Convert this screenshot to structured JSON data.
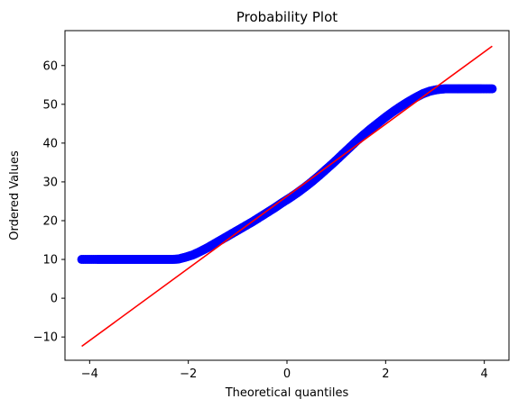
{
  "chart_data": {
    "type": "scatter",
    "title": "Probability Plot",
    "xlabel": "Theoretical quantiles",
    "ylabel": "Ordered Values",
    "xlim": [
      -4.5,
      4.5
    ],
    "ylim": [
      -16,
      69
    ],
    "x_ticks": [
      -4,
      -2,
      0,
      2,
      4
    ],
    "y_ticks": [
      -10,
      0,
      10,
      20,
      30,
      40,
      50,
      60
    ],
    "grid": false,
    "legend": "none",
    "series": [
      {
        "kind": "points",
        "color": "#0000ff",
        "points": [
          [
            -4.16,
            10.0
          ],
          [
            -3.85,
            10.0
          ],
          [
            -3.7,
            10.0
          ],
          [
            -3.55,
            10.0
          ],
          [
            -3.4,
            10.0
          ],
          [
            -3.25,
            10.0
          ],
          [
            -3.1,
            10.0
          ],
          [
            -2.95,
            10.0
          ],
          [
            -2.8,
            10.0
          ],
          [
            -2.65,
            10.0
          ],
          [
            -2.5,
            10.0
          ],
          [
            -2.35,
            10.0
          ],
          [
            -2.2,
            10.1
          ],
          [
            -2.05,
            10.6
          ],
          [
            -1.9,
            11.2
          ],
          [
            -1.75,
            12.1
          ],
          [
            -1.6,
            13.1
          ],
          [
            -1.45,
            14.2
          ],
          [
            -1.3,
            15.3
          ],
          [
            -1.15,
            16.4
          ],
          [
            -1.0,
            17.5
          ],
          [
            -0.85,
            18.6
          ],
          [
            -0.7,
            19.7
          ],
          [
            -0.55,
            20.9
          ],
          [
            -0.4,
            22.1
          ],
          [
            -0.25,
            23.3
          ],
          [
            -0.1,
            24.6
          ],
          [
            0.05,
            25.8
          ],
          [
            0.2,
            27.1
          ],
          [
            0.35,
            28.5
          ],
          [
            0.5,
            30.0
          ],
          [
            0.65,
            31.6
          ],
          [
            0.8,
            33.3
          ],
          [
            0.95,
            35.0
          ],
          [
            1.1,
            36.8
          ],
          [
            1.25,
            38.6
          ],
          [
            1.4,
            40.4
          ],
          [
            1.55,
            42.1
          ],
          [
            1.7,
            43.7
          ],
          [
            1.85,
            45.2
          ],
          [
            2.0,
            46.7
          ],
          [
            2.15,
            48.1
          ],
          [
            2.3,
            49.4
          ],
          [
            2.45,
            50.6
          ],
          [
            2.6,
            51.7
          ],
          [
            2.75,
            52.7
          ],
          [
            2.9,
            53.4
          ],
          [
            3.05,
            53.8
          ],
          [
            3.2,
            54.0
          ],
          [
            3.35,
            54.0
          ],
          [
            3.5,
            54.0
          ],
          [
            3.65,
            54.0
          ],
          [
            3.8,
            54.0
          ],
          [
            3.95,
            54.0
          ],
          [
            4.16,
            54.0
          ]
        ]
      },
      {
        "kind": "line",
        "color": "#ff0000",
        "points": [
          [
            -4.16,
            -12.4
          ],
          [
            4.16,
            65.0
          ]
        ]
      }
    ]
  }
}
